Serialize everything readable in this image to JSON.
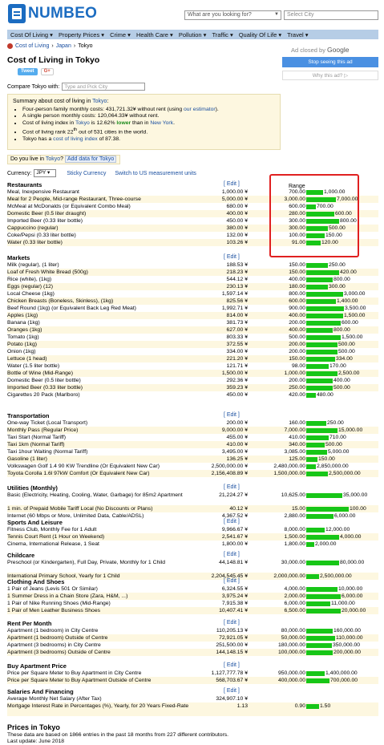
{
  "header": {
    "logo": "NUMBEO",
    "search_placeholder": "What are you looking for?",
    "city_placeholder": "Select City"
  },
  "nav": [
    "Cost Of Living ▾",
    "Property Prices ▾",
    "Crime ▾",
    "Health Care ▾",
    "Pollution ▾",
    "Traffic ▾",
    "Quality Of Life ▾",
    "Travel ▾"
  ],
  "breadcrumb": [
    "Cost of Living",
    "›",
    "Japan",
    "›",
    "Tokyo"
  ],
  "title": "Cost of Living in Tokyo",
  "share": {
    "tweet": "Tweet",
    "gplus": "G+"
  },
  "compare": {
    "label": "Compare Tokyo with:",
    "placeholder": "Type and Pick City"
  },
  "summary": {
    "title_prefix": "Summary about cost of living in ",
    "city": "Tokyo",
    "title_suffix": ":",
    "items": [
      [
        "Four-person family monthly costs: 431,721.32¥ without rent (using ",
        "our estimator",
        ")."
      ],
      [
        "A single person monthly costs: 120,064.33¥ without rent.",
        "",
        ""
      ],
      [
        "Cost of living index in ",
        "Tokyo",
        " is 12.62% ",
        "lower",
        " than in ",
        "New York",
        "."
      ],
      [
        "Cost of living rank 22",
        "th",
        " out of 531 cities in the world."
      ],
      [
        "Tokyo has a ",
        "cost of living index",
        " of 87.38."
      ]
    ]
  },
  "live": {
    "text": "Do you live in ",
    "city": "Tokyo",
    "q": "?",
    "button": "Add data for Tokyo"
  },
  "currency": {
    "label": "Currency:",
    "value": "JPY ▾",
    "sticky": "Sticky Currency",
    "switch": "Switch to US measurement units"
  },
  "ad": {
    "closed": "Ad closed by ",
    "google": "Google",
    "stop": "Stop seeing this ad",
    "why": "Why this ad? ▷"
  },
  "range_header": "Range",
  "edit_label": "[ Edit ]",
  "sections": [
    {
      "title": "Restaurants",
      "rows": [
        [
          "Meal, Inexpensive Restaurant",
          "1,000.00 ¥",
          "700.00",
          "1,000.00",
          0.3
        ],
        [
          "Meal for 2 People, Mid-range Restaurant, Three-course",
          "5,000.00 ¥",
          "3,000.00",
          "7,000.00",
          0.57
        ],
        [
          "McMeal at McDonalds (or Equivalent Combo Meal)",
          "680.00 ¥",
          "600.00",
          "700.00",
          0.14
        ],
        [
          "Domestic Beer (0.5 liter draught)",
          "400.00 ¥",
          "280.00",
          "600.00",
          0.53
        ],
        [
          "Imported Beer (0.33 liter bottle)",
          "450.00 ¥",
          "300.00",
          "800.00",
          0.63
        ],
        [
          "Cappuccino (regular)",
          "380.00 ¥",
          "300.00",
          "500.00",
          0.4
        ],
        [
          "Coke/Pepsi (0.33 liter bottle)",
          "132.00 ¥",
          "100.00",
          "150.00",
          0.33
        ],
        [
          "Water (0.33 liter bottle)",
          "103.26 ¥",
          "91.00",
          "120.00",
          0.24
        ]
      ]
    },
    {
      "title": "Markets",
      "rows": [
        [
          "Milk (regular), (1 liter)",
          "188.53 ¥",
          "150.00",
          "250.00",
          0.4
        ],
        [
          "Loaf of Fresh White Bread (500g)",
          "218.23 ¥",
          "150.00",
          "420.00",
          0.64
        ],
        [
          "Rice (white), (1kg)",
          "544.12 ¥",
          "400.00",
          "800.00",
          0.5
        ],
        [
          "Eggs (regular) (12)",
          "230.13 ¥",
          "180.00",
          "300.00",
          0.4
        ],
        [
          "Local Cheese (1kg)",
          "1,597.14 ¥",
          "800.00",
          "3,000.00",
          0.73
        ],
        [
          "Chicken Breasts (Boneless, Skinless), (1kg)",
          "825.56 ¥",
          "600.00",
          "1,400.00",
          0.57
        ],
        [
          "Beef Round (1kg) (or Equivalent Back Leg Red Meat)",
          "1,992.71 ¥",
          "900.00",
          "3,500.00",
          0.74
        ],
        [
          "Apples (1kg)",
          "814.00 ¥",
          "400.00",
          "1,500.00",
          0.73
        ],
        [
          "Banana (1kg)",
          "381.73 ¥",
          "200.00",
          "600.00",
          0.67
        ],
        [
          "Oranges (1kg)",
          "627.00 ¥",
          "400.00",
          "800.00",
          0.5
        ],
        [
          "Tomato (1kg)",
          "803.33 ¥",
          "500.00",
          "1,500.00",
          0.67
        ],
        [
          "Potato (1kg)",
          "372.55 ¥",
          "200.00",
          "500.00",
          0.6
        ],
        [
          "Onion (1kg)",
          "334.00 ¥",
          "200.00",
          "500.00",
          0.6
        ],
        [
          "Lettuce (1 head)",
          "221.20 ¥",
          "150.00",
          "334.00",
          0.55
        ],
        [
          "Water (1.5 liter bottle)",
          "121.71 ¥",
          "98.00",
          "170.00",
          0.42
        ],
        [
          "Bottle of Wine (Mid-Range)",
          "1,500.00 ¥",
          "1,000.00",
          "2,500.00",
          0.6
        ],
        [
          "Domestic Beer (0.5 liter bottle)",
          "292.36 ¥",
          "200.00",
          "400.00",
          0.5
        ],
        [
          "Imported Beer (0.33 liter bottle)",
          "359.23 ¥",
          "250.00",
          "500.00",
          0.5
        ],
        [
          "Cigarettes 20 Pack (Marlboro)",
          "450.00 ¥",
          "420.00",
          "480.00",
          0.13
        ]
      ]
    },
    {
      "title": "Transportation",
      "rows": [
        [
          "One-way Ticket (Local Transport)",
          "200.00 ¥",
          "160.00",
          "250.00",
          0.36
        ],
        [
          "Monthly Pass (Regular Price)",
          "9,000.00 ¥",
          "7,000.00",
          "15,000.00",
          0.6
        ],
        [
          "Taxi Start (Normal Tariff)",
          "455.00 ¥",
          "410.00",
          "710.00",
          0.42
        ],
        [
          "Taxi 1km (Normal Tariff)",
          "410.00 ¥",
          "340.00",
          "500.00",
          0.32
        ],
        [
          "Taxi 1hour Waiting (Normal Tariff)",
          "3,495.00 ¥",
          "3,085.00",
          "5,000.00",
          0.38
        ],
        [
          "Gasoline (1 liter)",
          "136.25 ¥",
          "125.00",
          "150.00",
          0.17
        ],
        [
          "Volkswagen Golf 1.4 90 KW Trendline (Or Equivalent New Car)",
          "2,500,000.00 ¥",
          "2,480,000.00",
          "2,850,000.00",
          0.13
        ],
        [
          "Toyota Corolla 1.6l 97kW Comfort (Or Equivalent New Car)",
          "2,156,408.89 ¥",
          "1,500,000.00",
          "2,500,000.00",
          0.4
        ]
      ]
    },
    {
      "title": "Utilities (Monthly)",
      "rows": [
        [
          "Basic (Electricity, Heating, Cooling, Water, Garbage) for 85m2 Apartment",
          "21,224.27 ¥",
          "10,625.00",
          "35,000.00",
          0.7
        ],
        [
          "1 min. of Prepaid Mobile Tariff Local (No Discounts or Plans)",
          "40.12 ¥",
          "15.00",
          "100.00",
          0.85
        ],
        [
          "Internet (60 Mbps or More, Unlimited Data, Cable/ADSL)",
          "4,367.52 ¥",
          "2,880.00",
          "6,000.00",
          0.52
        ]
      ]
    },
    {
      "title": "Sports And Leisure",
      "rows": [
        [
          "Fitness Club, Monthly Fee for 1 Adult",
          "9,966.67 ¥",
          "8,000.00",
          "12,000.00",
          0.33
        ],
        [
          "Tennis Court Rent (1 Hour on Weekend)",
          "2,541.67 ¥",
          "1,500.00",
          "4,000.00",
          0.63
        ],
        [
          "Cinema, International Release, 1 Seat",
          "1,800.00 ¥",
          "1,800.00",
          "2,000.00",
          0.1
        ]
      ]
    },
    {
      "title": "Childcare",
      "rows": [
        [
          "Preschool (or Kindergarten), Full Day, Private, Monthly for 1 Child",
          "44,148.81 ¥",
          "30,000.00",
          "80,000.00",
          0.63
        ],
        [
          "International Primary School, Yearly for 1 Child",
          "2,204,545.45 ¥",
          "2,000,000.00",
          "2,500,000.00",
          0.2
        ]
      ]
    },
    {
      "title": "Clothing And Shoes",
      "rows": [
        [
          "1 Pair of Jeans (Levis 501 Or Similar)",
          "6,324.55 ¥",
          "4,000.00",
          "10,000.00",
          0.6
        ],
        [
          "1 Summer Dress in a Chain Store (Zara, H&M, ...)",
          "3,975.24 ¥",
          "2,000.00",
          "6,000.00",
          0.67
        ],
        [
          "1 Pair of Nike Running Shoes (Mid-Range)",
          "7,915.38 ¥",
          "6,000.00",
          "11,000.00",
          0.45
        ],
        [
          "1 Pair of Men Leather Business Shoes",
          "10,407.41 ¥",
          "6,500.00",
          "20,000.00",
          0.68
        ]
      ]
    },
    {
      "title": "Rent Per Month",
      "rows": [
        [
          "Apartment (1 bedroom) in City Centre",
          "110,205.13 ¥",
          "80,000.00",
          "160,000.00",
          0.5
        ],
        [
          "Apartment (1 bedroom) Outside of Centre",
          "72,921.05 ¥",
          "50,000.00",
          "110,000.00",
          0.55
        ],
        [
          "Apartment (3 bedrooms) in City Centre",
          "251,500.00 ¥",
          "180,000.00",
          "350,000.00",
          0.49
        ],
        [
          "Apartment (3 bedrooms) Outside of Centre",
          "144,148.15 ¥",
          "100,000.00",
          "200,000.00",
          0.5
        ]
      ]
    },
    {
      "title": "Buy Apartment Price",
      "rows": [
        [
          "Price per Square Meter to Buy Apartment in City Centre",
          "1,127,777.78 ¥",
          "950,000.00",
          "1,400,000.00",
          0.32
        ],
        [
          "Price per Square Meter to Buy Apartment Outside of Centre",
          "568,703.67 ¥",
          "400,000.00",
          "700,000.00",
          0.43
        ]
      ]
    },
    {
      "title": "Salaries And Financing",
      "rows": [
        [
          "Average Monthly Net Salary (After Tax)",
          "324,907.10 ¥",
          "",
          "",
          0
        ],
        [
          "Mortgage Interest Rate in Percentages (%), Yearly, for 20 Years Fixed-Rate",
          "1.13",
          "0.90",
          "1.50",
          0.2
        ]
      ]
    }
  ],
  "footer": {
    "title": "Prices in Tokyo",
    "line1": "These data are based on 1866 entries in the past 18 months from 227 different contributors.",
    "line2": "Last update: June 2018"
  }
}
